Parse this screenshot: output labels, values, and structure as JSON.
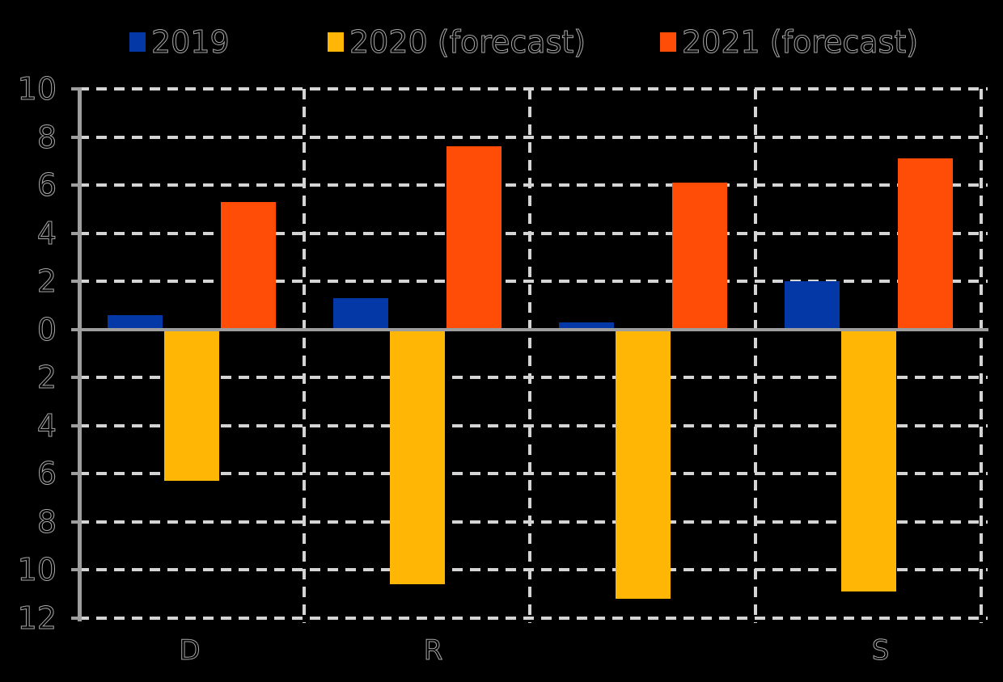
{
  "legend": {
    "items": [
      {
        "label": "2019",
        "color": "#0338A6"
      },
      {
        "label": "2020 (forecast)",
        "color": "#FFB604"
      },
      {
        "label": "2021 (forecast)",
        "color": "#FF4D08"
      }
    ]
  },
  "chart_data": {
    "type": "bar",
    "title": "",
    "xlabel": "",
    "ylabel": "",
    "categories": [
      "D",
      "R",
      "",
      "S"
    ],
    "series": [
      {
        "name": "2019",
        "color": "#0338A6",
        "values": [
          0.6,
          1.3,
          0.3,
          2.0
        ]
      },
      {
        "name": "2020 (forecast)",
        "color": "#FFB604",
        "values": [
          -6.3,
          -10.6,
          -11.2,
          -10.9
        ]
      },
      {
        "name": "2021 (forecast)",
        "color": "#FF4D08",
        "values": [
          5.3,
          7.6,
          6.1,
          7.1
        ]
      }
    ],
    "ylim": [
      -12,
      10
    ],
    "ytick_step": 2,
    "ytick_labels_displayed": [
      "10",
      "8",
      "6",
      "4",
      "2",
      "0",
      "2",
      "4",
      "6",
      "8",
      "10",
      "12"
    ],
    "grid": "dashed",
    "legend_position": "top",
    "styles": {
      "background": "#000000",
      "gridline_color": "#D4D4D4",
      "axis_color": "#9E9E9E",
      "text_outline_color": "#A9A9A9"
    }
  }
}
